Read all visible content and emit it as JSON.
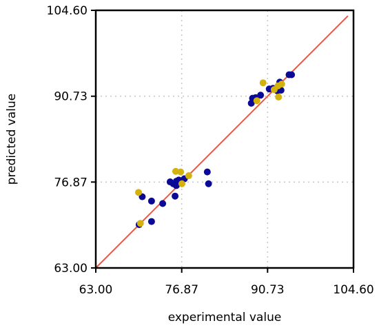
{
  "chart_data": {
    "type": "scatter",
    "title": "",
    "xlabel": "experimental value",
    "ylabel": "predicted value",
    "xlim": [
      63.0,
      104.6
    ],
    "ylim": [
      63.0,
      104.6
    ],
    "xticks": [
      63.0,
      76.87,
      90.73,
      104.6
    ],
    "yticks": [
      63.0,
      76.87,
      90.73,
      104.6
    ],
    "xtick_labels": [
      "63.00",
      "76.87",
      "90.73",
      "104.60"
    ],
    "ytick_labels": [
      "63.00",
      "76.87",
      "90.73",
      "104.60"
    ],
    "grid": true,
    "reference_line": {
      "x": [
        63.0,
        103.7
      ],
      "y": [
        63.0,
        103.7
      ],
      "color": "#e05a4b"
    },
    "series": [
      {
        "color": "#0a0a96",
        "points": [
          [
            70.0,
            70.0
          ],
          [
            70.5,
            74.5
          ],
          [
            72.0,
            70.5
          ],
          [
            72.0,
            73.8
          ],
          [
            73.8,
            73.4
          ],
          [
            75.0,
            76.9
          ],
          [
            75.5,
            76.6
          ],
          [
            75.8,
            74.6
          ],
          [
            76.0,
            77.0
          ],
          [
            76.0,
            76.3
          ],
          [
            76.4,
            77.2
          ],
          [
            76.9,
            77.1
          ],
          [
            77.3,
            77.4
          ],
          [
            81.0,
            78.5
          ],
          [
            81.2,
            76.6
          ],
          [
            88.1,
            89.6
          ],
          [
            88.3,
            90.4
          ],
          [
            88.8,
            90.5
          ],
          [
            89.6,
            90.9
          ],
          [
            91.0,
            91.9
          ],
          [
            91.6,
            92.0
          ],
          [
            92.3,
            91.6
          ],
          [
            92.6,
            92.6
          ],
          [
            92.7,
            93.0
          ],
          [
            92.9,
            91.7
          ],
          [
            94.2,
            94.2
          ],
          [
            94.6,
            94.2
          ]
        ]
      },
      {
        "color": "#d4b20e",
        "points": [
          [
            69.9,
            75.2
          ],
          [
            70.2,
            70.2
          ],
          [
            75.9,
            78.6
          ],
          [
            76.7,
            78.5
          ],
          [
            76.9,
            76.6
          ],
          [
            78.0,
            77.9
          ],
          [
            89.0,
            90.0
          ],
          [
            90.0,
            92.9
          ],
          [
            91.8,
            91.8
          ],
          [
            92.4,
            92.4
          ],
          [
            92.5,
            90.6
          ],
          [
            93.0,
            92.7
          ]
        ]
      }
    ]
  }
}
